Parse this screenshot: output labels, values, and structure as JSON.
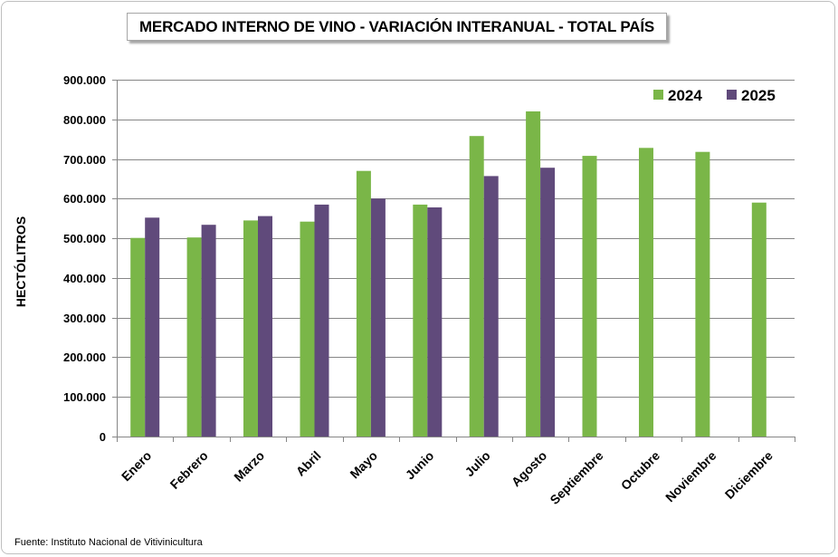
{
  "source": "Fuente: Instituto Nacional de Vitivinicultura",
  "colors": {
    "2024": "#7ab648",
    "2025": "#604a7b",
    "grid": "#868686",
    "axis": "#868686"
  },
  "chart_data": {
    "type": "bar",
    "title": "MERCADO INTERNO DE VINO - VARIACIÓN INTERANUAL - TOTAL PAÍS",
    "xlabel": "",
    "ylabel": "HECTÓLITROS",
    "ylim": [
      0,
      900000
    ],
    "yticks": [
      0,
      100000,
      200000,
      300000,
      400000,
      500000,
      600000,
      700000,
      800000,
      900000
    ],
    "ytick_labels": [
      "0",
      "100.000",
      "200.000",
      "300.000",
      "400.000",
      "500.000",
      "600.000",
      "700.000",
      "800.000",
      "900.000"
    ],
    "grid": true,
    "legend_position": "top-right",
    "categories": [
      "Enero",
      "Febrero",
      "Marzo",
      "Abril",
      "Mayo",
      "Junio",
      "Julio",
      "Agosto",
      "Septiembre",
      "Octubre",
      "Noviembre",
      "Diciembre"
    ],
    "series": [
      {
        "name": "2024",
        "values": [
          501000,
          502000,
          545000,
          542000,
          670000,
          585000,
          758000,
          820000,
          708000,
          728000,
          718000,
          590000
        ]
      },
      {
        "name": "2025",
        "values": [
          552000,
          534000,
          556000,
          585000,
          600000,
          578000,
          657000,
          678000,
          null,
          null,
          null,
          null
        ]
      }
    ]
  }
}
